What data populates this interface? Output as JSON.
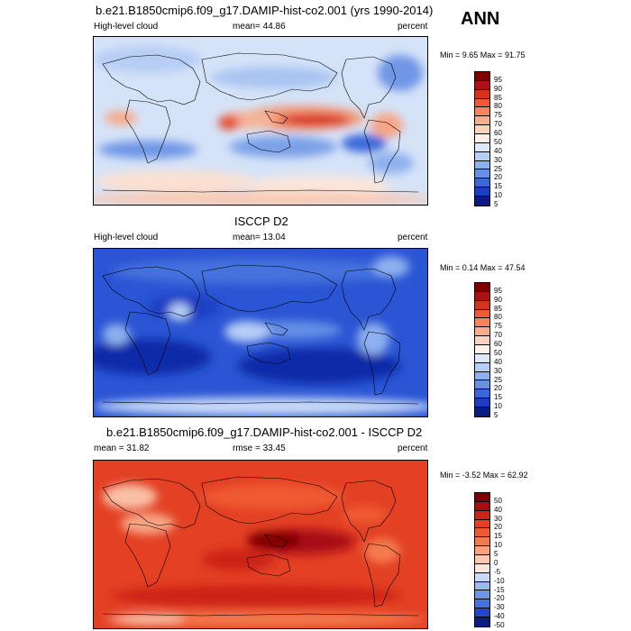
{
  "season": "ANN",
  "panels": [
    {
      "title": "b.e21.B1850cmip6.f09_g17.DAMIP-hist-co2.001 (yrs 1990-2014)",
      "left_label": "High-level cloud",
      "mid_label": "mean=  44.86",
      "right_label": "percent",
      "minmax": "Min =   9.65 Max =  91.75",
      "levels": [
        "95",
        "90",
        "85",
        "80",
        "75",
        "70",
        "60",
        "50",
        "40",
        "30",
        "25",
        "20",
        "15",
        "10",
        "5"
      ],
      "colors": [
        "#800000",
        "#b00f14",
        "#d8311c",
        "#ef5a32",
        "#f7845a",
        "#f9ad8a",
        "#fbd2bd",
        "#fdf0e6",
        "#dde9fb",
        "#b6cdf6",
        "#8eb0ef",
        "#6590e6",
        "#3a67db",
        "#1a3fc4",
        "#0a1b88"
      ]
    },
    {
      "title": "ISCCP D2",
      "left_label": "High-level cloud",
      "mid_label": "mean=  13.04",
      "right_label": "percent",
      "minmax": "Min =   0.14 Max =  47.54",
      "levels": [
        "95",
        "90",
        "85",
        "80",
        "75",
        "70",
        "60",
        "50",
        "40",
        "30",
        "25",
        "20",
        "15",
        "10",
        "5"
      ],
      "colors": [
        "#800000",
        "#b00f14",
        "#d8311c",
        "#ef5a32",
        "#f7845a",
        "#f9ad8a",
        "#fbd2bd",
        "#fdf0e6",
        "#dde9fb",
        "#b6cdf6",
        "#8eb0ef",
        "#6590e6",
        "#3a67db",
        "#1a3fc4",
        "#0a1b88"
      ]
    },
    {
      "title": "b.e21.B1850cmip6.f09_g17.DAMIP-hist-co2.001 - ISCCP D2",
      "left_label": "mean =  31.82",
      "mid_label": "rmse =  33.45",
      "right_label": "percent",
      "minmax": "Min =  -3.52 Max =  62.92",
      "levels": [
        "50",
        "40",
        "30",
        "20",
        "15",
        "10",
        "5",
        "0",
        "-5",
        "-10",
        "-15",
        "-20",
        "-30",
        "-40",
        "-50"
      ],
      "colors": [
        "#800000",
        "#a80c12",
        "#cc2417",
        "#e34024",
        "#ef5a32",
        "#f57a4e",
        "#f9a07c",
        "#fcc8b0",
        "#fbe6dc",
        "#c9daf8",
        "#9dbaf0",
        "#6f96e6",
        "#4572dd",
        "#2047c8",
        "#0a1b88"
      ]
    }
  ]
}
